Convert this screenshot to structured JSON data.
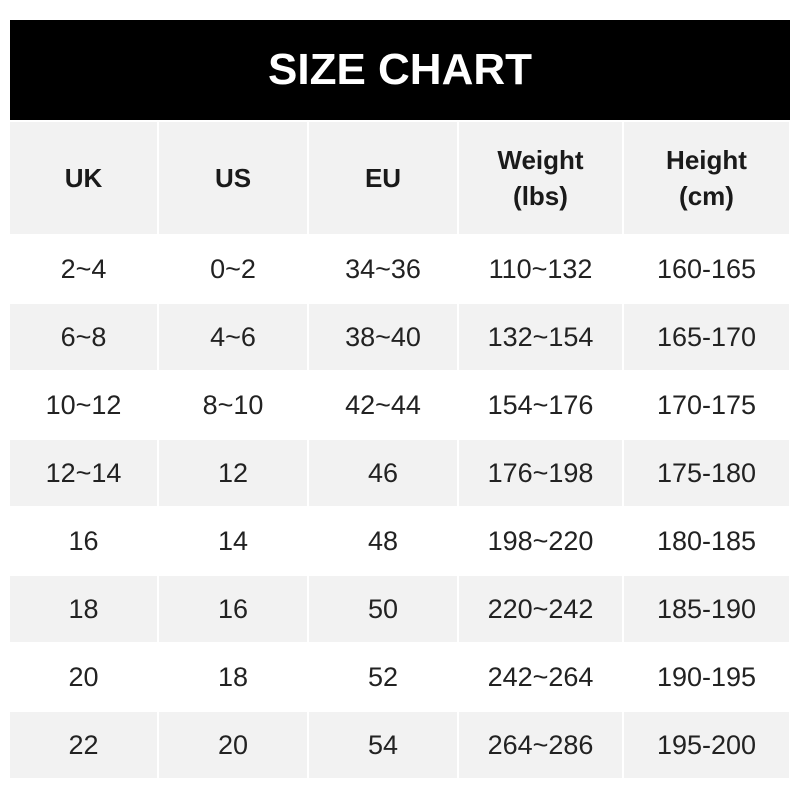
{
  "title": "SIZE CHART",
  "headers": [
    "UK",
    "US",
    "EU",
    "Weight\n(lbs)",
    "Height\n(cm)"
  ],
  "rows": [
    [
      "2~4",
      "0~2",
      "34~36",
      "110~132",
      "160-165"
    ],
    [
      "6~8",
      "4~6",
      "38~40",
      "132~154",
      "165-170"
    ],
    [
      "10~12",
      "8~10",
      "42~44",
      "154~176",
      "170-175"
    ],
    [
      "12~14",
      "12",
      "46",
      "176~198",
      "175-180"
    ],
    [
      "16",
      "14",
      "48",
      "198~220",
      "180-185"
    ],
    [
      "18",
      "16",
      "50",
      "220~242",
      "185-190"
    ],
    [
      "20",
      "18",
      "52",
      "242~264",
      "190-195"
    ],
    [
      "22",
      "20",
      "54",
      "264~286",
      "195-200"
    ]
  ],
  "colors": {
    "title_bg": "#000000",
    "stripe": "#f2f2f2"
  }
}
